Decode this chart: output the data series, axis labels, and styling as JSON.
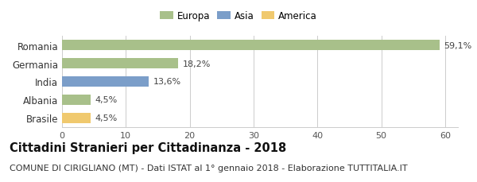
{
  "categories": [
    "Romania",
    "Germania",
    "India",
    "Albania",
    "Brasile"
  ],
  "values": [
    59.1,
    18.2,
    13.6,
    4.5,
    4.5
  ],
  "labels": [
    "59,1%",
    "18,2%",
    "13,6%",
    "4,5%",
    "4,5%"
  ],
  "bar_colors": [
    "#a8c08a",
    "#a8c08a",
    "#7b9ec9",
    "#a8c08a",
    "#f0c96e"
  ],
  "legend_labels": [
    "Europa",
    "Asia",
    "America"
  ],
  "legend_colors": [
    "#a8c08a",
    "#7b9ec9",
    "#f0c96e"
  ],
  "xlim": [
    0,
    62
  ],
  "xticks": [
    0,
    10,
    20,
    30,
    40,
    50,
    60
  ],
  "title": "Cittadini Stranieri per Cittadinanza - 2018",
  "subtitle": "COMUNE DI CIRIGLIANO (MT) - Dati ISTAT al 1° gennaio 2018 - Elaborazione TUTTITALIA.IT",
  "title_fontsize": 10.5,
  "subtitle_fontsize": 8.0,
  "bg_color": "#ffffff",
  "grid_color": "#cccccc"
}
